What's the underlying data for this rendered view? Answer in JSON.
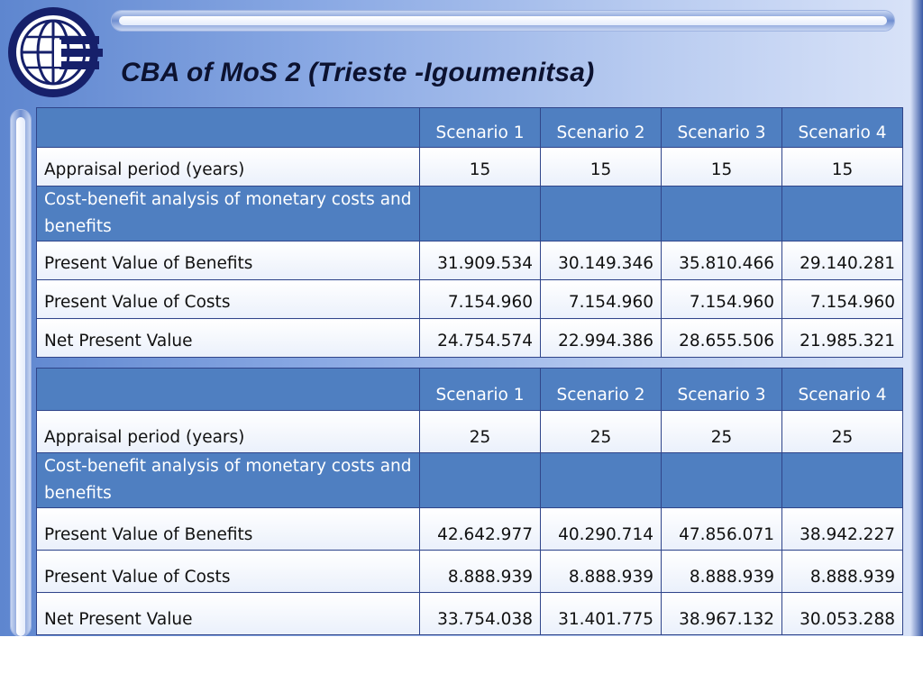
{
  "title": "CBA of MoS 2 (Trieste -Igoumenitsa)",
  "tables": [
    {
      "headers": [
        "",
        "Scenario 1",
        "Scenario 2",
        "Scenario 3",
        "Scenario 4"
      ],
      "appraisal_label": "Appraisal period (years)",
      "appraisal_values": [
        "15",
        "15",
        "15",
        "15"
      ],
      "section_label": "Cost-benefit analysis of monetary costs and benefits",
      "rows": [
        {
          "label": "Present Value of Benefits",
          "values": [
            "31.909.534",
            "30.149.346",
            "35.810.466",
            "29.140.281"
          ]
        },
        {
          "label": "Present Value of Costs",
          "values": [
            "7.154.960",
            "7.154.960",
            "7.154.960",
            "7.154.960"
          ]
        },
        {
          "label": "Net Present Value",
          "values": [
            "24.754.574",
            "22.994.386",
            "28.655.506",
            "21.985.321"
          ]
        }
      ]
    },
    {
      "headers": [
        "",
        "Scenario 1",
        "Scenario 2",
        "Scenario 3",
        "Scenario 4"
      ],
      "appraisal_label": "Appraisal period (years)",
      "appraisal_values": [
        "25",
        "25",
        "25",
        "25"
      ],
      "section_label": "Cost-benefit analysis of monetary costs and benefits",
      "rows": [
        {
          "label": "Present Value of Benefits",
          "values": [
            "42.642.977",
            "40.290.714",
            "47.856.071",
            "38.942.227"
          ]
        },
        {
          "label": "Present Value of Costs",
          "values": [
            "8.888.939",
            "8.888.939",
            "8.888.939",
            "8.888.939"
          ]
        },
        {
          "label": "Net Present Value",
          "values": [
            "33.754.038",
            "31.401.775",
            "38.967.132",
            "30.053.288"
          ]
        }
      ]
    }
  ],
  "colors": {
    "header_row": "#4f7fc1",
    "data_row": "#f4f7fd",
    "border": "#30458a",
    "logo_navy": "#16206a"
  },
  "logo_icon": "globe-emblem-icon"
}
